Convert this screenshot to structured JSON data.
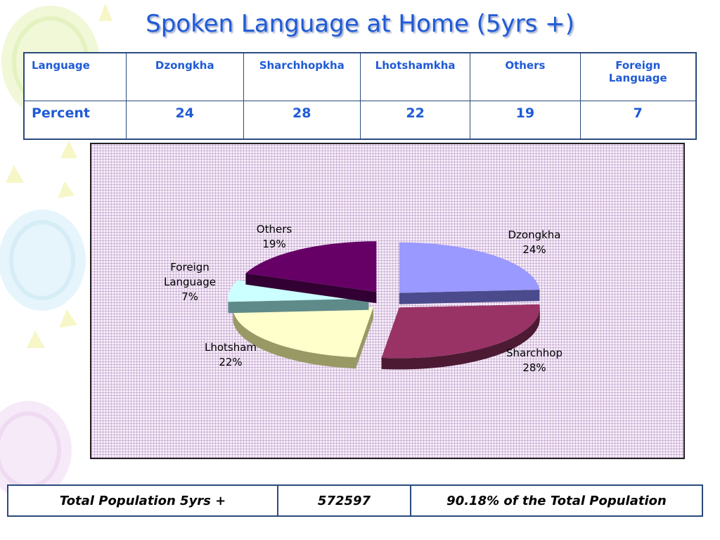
{
  "title": "Spoken Language at Home (5yrs +)",
  "table": {
    "header_label": "Language",
    "row_label": "Percent",
    "columns": [
      {
        "name": "Dzongkha",
        "value": "24"
      },
      {
        "name": "Sharchhopkha",
        "value": "28"
      },
      {
        "name": "Lhotshamkha",
        "value": "22"
      },
      {
        "name": "Others",
        "value": "19"
      },
      {
        "name": "Foreign\nLanguage",
        "value": "7"
      }
    ]
  },
  "chart_data": {
    "type": "pie",
    "title": "",
    "slices": [
      {
        "label": "Dzongkha",
        "value": 24,
        "value_label": "24%",
        "color": "#9999ff",
        "side": "#4a4a8c"
      },
      {
        "label": "Sharchhop",
        "value": 28,
        "value_label": "28%",
        "color": "#993366",
        "side": "#4d1a33"
      },
      {
        "label": "Lhotsham",
        "value": 22,
        "value_label": "22%",
        "color": "#ffffcc",
        "side": "#999966"
      },
      {
        "label": "Foreign\nLanguage",
        "value": 7,
        "value_label": "7%",
        "color": "#ccffff",
        "side": "#5f8a8a"
      },
      {
        "label": "Others",
        "value": 19,
        "value_label": "19%",
        "color": "#660066",
        "side": "#330033"
      }
    ],
    "style": "3d-exploded",
    "background": "#f6edf8"
  },
  "summary": {
    "label": "Total Population 5yrs +",
    "value": "572597",
    "note": "90.18% of the Total Population"
  }
}
